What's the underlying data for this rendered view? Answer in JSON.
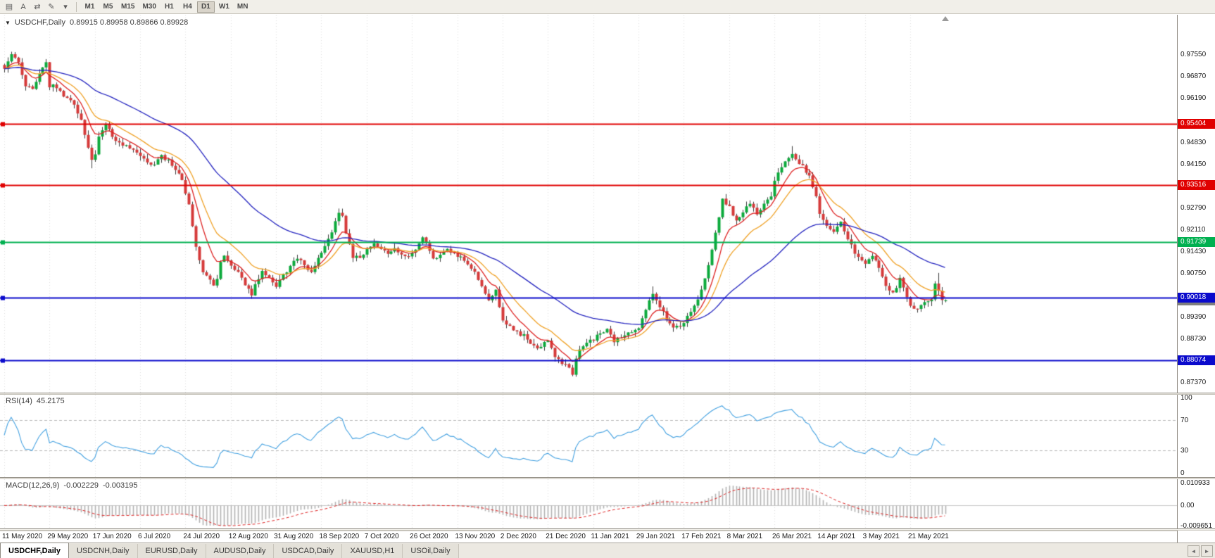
{
  "toolbar": {
    "icons": [
      {
        "name": "chart-window-icon",
        "glyph": "▤"
      },
      {
        "name": "cursor-tool-icon",
        "glyph": "A"
      },
      {
        "name": "scroll-tool-icon",
        "glyph": "⇄"
      },
      {
        "name": "draw-tools-icon",
        "glyph": "✎"
      },
      {
        "name": "draw-tools-caret-icon",
        "glyph": "▾"
      }
    ],
    "timeframes": [
      {
        "label": "M1",
        "active": false
      },
      {
        "label": "M5",
        "active": false
      },
      {
        "label": "M15",
        "active": false
      },
      {
        "label": "M30",
        "active": false
      },
      {
        "label": "H1",
        "active": false
      },
      {
        "label": "H4",
        "active": false
      },
      {
        "label": "D1",
        "active": true
      },
      {
        "label": "W1",
        "active": false
      },
      {
        "label": "MN",
        "active": false
      }
    ]
  },
  "chart": {
    "title": "USDCHF,Daily",
    "ohlc": "0.89915 0.89958 0.89866 0.89928",
    "dropdown_glyph": "▼"
  },
  "price_axis": {
    "top": 0.988,
    "bottom": 0.8706,
    "labels": [
      {
        "text": "0.97550",
        "value": 0.9755
      },
      {
        "text": "0.96870",
        "value": 0.9687
      },
      {
        "text": "0.96190",
        "value": 0.9619
      },
      {
        "text": "0.94830",
        "value": 0.9483
      },
      {
        "text": "0.94150",
        "value": 0.9415
      },
      {
        "text": "0.92790",
        "value": 0.9279
      },
      {
        "text": "0.92110",
        "value": 0.9211
      },
      {
        "text": "0.91430",
        "value": 0.9143
      },
      {
        "text": "0.90750",
        "value": 0.9075
      },
      {
        "text": "0.89390",
        "value": 0.8939
      },
      {
        "text": "0.88730",
        "value": 0.8873
      },
      {
        "text": "0.87370",
        "value": 0.8737
      }
    ]
  },
  "hlines": [
    {
      "label": "0.95404",
      "price": 0.95404,
      "color": "#e00000"
    },
    {
      "label": "0.93516",
      "price": 0.93516,
      "color": "#e00000"
    },
    {
      "label": "0.91739",
      "price": 0.91739,
      "color": "#00b050"
    },
    {
      "label": "0.90018",
      "price": 0.90018,
      "color": "#0a0acc"
    },
    {
      "label": "0.88074",
      "price": 0.88074,
      "color": "#0a0acc"
    }
  ],
  "current_price": {
    "text": "0.89928",
    "value": 0.89928,
    "color": "#7f7f7f"
  },
  "rsi": {
    "name": "RSI(14)",
    "value": "45.2175",
    "color": "#42a0e0",
    "levels": [
      {
        "text": "100",
        "value": 100
      },
      {
        "text": "70",
        "value": 70
      },
      {
        "text": "30",
        "value": 30
      },
      {
        "text": "0",
        "value": 0
      }
    ],
    "dashed_levels": [
      70,
      30
    ]
  },
  "macd": {
    "name": "MACD(12,26,9)",
    "value_main": "-0.002229",
    "value_signal": "-0.003195",
    "max": 0.010933,
    "min": -0.009651,
    "axis": [
      {
        "text": "0.010933",
        "value": 0.010933
      },
      {
        "text": "0.00",
        "value": 0
      },
      {
        "text": "-0.009651",
        "value": -0.009651
      }
    ]
  },
  "dates": [
    "11 May 2020",
    "29 May 2020",
    "17 Jun 2020",
    "6 Jul 2020",
    "24 Jul 2020",
    "12 Aug 2020",
    "31 Aug 2020",
    "18 Sep 2020",
    "7 Oct 2020",
    "26 Oct 2020",
    "13 Nov 2020",
    "2 Dec 2020",
    "21 Dec 2020",
    "11 Jan 2021",
    "29 Jan 2021",
    "17 Feb 2021",
    "8 Mar 2021",
    "26 Mar 2021",
    "14 Apr 2021",
    "3 May 2021",
    "21 May 2021"
  ],
  "tabbar": {
    "tabs": [
      {
        "label": "USDCHF,Daily",
        "active": true
      },
      {
        "label": "USDCNH,Daily",
        "active": false
      },
      {
        "label": "EURUSD,Daily",
        "active": false
      },
      {
        "label": "AUDUSD,Daily",
        "active": false
      },
      {
        "label": "USDCAD,Daily",
        "active": false
      },
      {
        "label": "XAUUSD,H1",
        "active": false
      },
      {
        "label": "USOil,Daily",
        "active": false
      }
    ],
    "scroll_left": "◄",
    "scroll_right": "►"
  },
  "chart_data": {
    "type": "candlestick",
    "symbol": "USDCHF",
    "period": "Daily",
    "bar_count": 271,
    "bars_per_date_tick": 13,
    "last_ohlc": {
      "open": 0.89915,
      "high": 0.89958,
      "low": 0.89866,
      "close": 0.89928
    },
    "colors": {
      "up": "#0caa3c",
      "down": "#d53a3a",
      "wick": "#3c3c3c"
    },
    "overlays": [
      {
        "name": "fast-ma",
        "period": 8,
        "color": "#dd2222"
      },
      {
        "name": "mid-ma",
        "period": 16,
        "color": "#efa126"
      },
      {
        "name": "slow-ma",
        "period": 50,
        "color": "#2424bf"
      }
    ],
    "anchors": [
      [
        0,
        0.9712
      ],
      [
        2,
        0.9752
      ],
      [
        4,
        0.9735
      ],
      [
        6,
        0.966
      ],
      [
        8,
        0.9645
      ],
      [
        10,
        0.97
      ],
      [
        12,
        0.9738
      ],
      [
        13,
        0.966
      ],
      [
        15,
        0.9655
      ],
      [
        18,
        0.962
      ],
      [
        20,
        0.96
      ],
      [
        22,
        0.9555
      ],
      [
        24,
        0.947
      ],
      [
        25,
        0.9425
      ],
      [
        26,
        0.945
      ],
      [
        27,
        0.95
      ],
      [
        29,
        0.9535
      ],
      [
        31,
        0.9505
      ],
      [
        33,
        0.948
      ],
      [
        35,
        0.947
      ],
      [
        37,
        0.9455
      ],
      [
        39,
        0.944
      ],
      [
        41,
        0.942
      ],
      [
        43,
        0.9415
      ],
      [
        45,
        0.944
      ],
      [
        47,
        0.9425
      ],
      [
        49,
        0.94
      ],
      [
        51,
        0.937
      ],
      [
        52,
        0.933
      ],
      [
        53,
        0.929
      ],
      [
        54,
        0.922
      ],
      [
        55,
        0.916
      ],
      [
        56,
        0.912
      ],
      [
        57,
        0.9085
      ],
      [
        58,
        0.9065
      ],
      [
        60,
        0.904
      ],
      [
        61,
        0.906
      ],
      [
        62,
        0.911
      ],
      [
        63,
        0.913
      ],
      [
        65,
        0.9105
      ],
      [
        67,
        0.908
      ],
      [
        69,
        0.904
      ],
      [
        71,
        0.9012
      ],
      [
        72,
        0.904
      ],
      [
        74,
        0.9088
      ],
      [
        76,
        0.906
      ],
      [
        78,
        0.9038
      ],
      [
        80,
        0.907
      ],
      [
        82,
        0.91
      ],
      [
        84,
        0.9128
      ],
      [
        86,
        0.91
      ],
      [
        88,
        0.9075
      ],
      [
        90,
        0.913
      ],
      [
        91,
        0.9142
      ],
      [
        93,
        0.918
      ],
      [
        95,
        0.924
      ],
      [
        96,
        0.927
      ],
      [
        97,
        0.9255
      ],
      [
        98,
        0.9195
      ],
      [
        100,
        0.913
      ],
      [
        102,
        0.9125
      ],
      [
        104,
        0.9148
      ],
      [
        106,
        0.9165
      ],
      [
        108,
        0.915
      ],
      [
        110,
        0.9135
      ],
      [
        112,
        0.9152
      ],
      [
        114,
        0.914
      ],
      [
        116,
        0.9128
      ],
      [
        117,
        0.914
      ],
      [
        119,
        0.917
      ],
      [
        120,
        0.9185
      ],
      [
        121,
        0.9165
      ],
      [
        123,
        0.912
      ],
      [
        125,
        0.914
      ],
      [
        127,
        0.9152
      ],
      [
        129,
        0.9138
      ],
      [
        130,
        0.9128
      ],
      [
        132,
        0.9122
      ],
      [
        134,
        0.9095
      ],
      [
        136,
        0.906
      ],
      [
        138,
        0.901
      ],
      [
        139,
        0.8992
      ],
      [
        140,
        0.9005
      ],
      [
        141,
        0.902
      ],
      [
        142,
        0.8975
      ],
      [
        143,
        0.893
      ],
      [
        145,
        0.8912
      ],
      [
        147,
        0.8895
      ],
      [
        149,
        0.8882
      ],
      [
        151,
        0.8858
      ],
      [
        153,
        0.8848
      ],
      [
        155,
        0.8858
      ],
      [
        156,
        0.8868
      ],
      [
        157,
        0.8845
      ],
      [
        158,
        0.882
      ],
      [
        160,
        0.88
      ],
      [
        162,
        0.8778
      ],
      [
        163,
        0.8768
      ],
      [
        164,
        0.881
      ],
      [
        165,
        0.884
      ],
      [
        167,
        0.8862
      ],
      [
        169,
        0.8872
      ],
      [
        171,
        0.889
      ],
      [
        173,
        0.89
      ],
      [
        175,
        0.8868
      ],
      [
        177,
        0.888
      ],
      [
        179,
        0.8895
      ],
      [
        181,
        0.8902
      ],
      [
        182,
        0.8908
      ],
      [
        183,
        0.894
      ],
      [
        184,
        0.8965
      ],
      [
        185,
        0.8995
      ],
      [
        186,
        0.9008
      ],
      [
        187,
        0.899
      ],
      [
        188,
        0.8972
      ],
      [
        190,
        0.8935
      ],
      [
        192,
        0.8902
      ],
      [
        194,
        0.8915
      ],
      [
        195,
        0.8928
      ],
      [
        197,
        0.8958
      ],
      [
        199,
        0.8992
      ],
      [
        201,
        0.9058
      ],
      [
        203,
        0.9148
      ],
      [
        205,
        0.9252
      ],
      [
        206,
        0.931
      ],
      [
        207,
        0.9295
      ],
      [
        208,
        0.9282
      ],
      [
        209,
        0.9258
      ],
      [
        210,
        0.9242
      ],
      [
        212,
        0.9272
      ],
      [
        214,
        0.9288
      ],
      [
        216,
        0.9262
      ],
      [
        218,
        0.9298
      ],
      [
        220,
        0.932
      ],
      [
        221,
        0.9358
      ],
      [
        222,
        0.9385
      ],
      [
        224,
        0.942
      ],
      [
        226,
        0.9448
      ],
      [
        227,
        0.943
      ],
      [
        229,
        0.9408
      ],
      [
        231,
        0.9378
      ],
      [
        233,
        0.9312
      ],
      [
        234,
        0.9262
      ],
      [
        236,
        0.923
      ],
      [
        238,
        0.9205
      ],
      [
        240,
        0.9232
      ],
      [
        242,
        0.9178
      ],
      [
        244,
        0.9142
      ],
      [
        246,
        0.912
      ],
      [
        247,
        0.9112
      ],
      [
        249,
        0.9135
      ],
      [
        251,
        0.9092
      ],
      [
        253,
        0.9042
      ],
      [
        255,
        0.9012
      ],
      [
        257,
        0.9062
      ],
      [
        259,
        0.9005
      ],
      [
        260,
        0.8978
      ],
      [
        262,
        0.8966
      ],
      [
        264,
        0.8988
      ],
      [
        266,
        0.9002
      ],
      [
        267,
        0.9042
      ],
      [
        268,
        0.9018
      ],
      [
        269,
        0.8996
      ],
      [
        270,
        0.89928
      ]
    ],
    "spikes": [
      [
        25,
        "low",
        0.9403
      ],
      [
        96,
        "high",
        0.9278
      ],
      [
        120,
        "high",
        0.9192
      ],
      [
        163,
        "low",
        0.8757
      ],
      [
        186,
        "high",
        0.9036
      ],
      [
        226,
        "high",
        0.9472
      ],
      [
        268,
        "high",
        0.9078
      ]
    ]
  }
}
